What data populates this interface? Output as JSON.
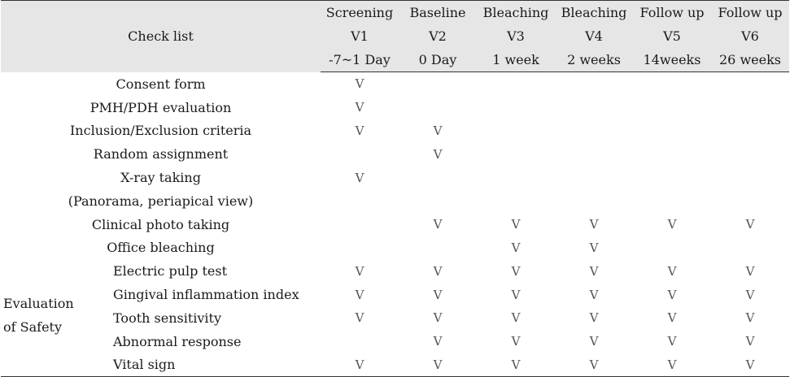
{
  "header": {
    "checklist_label": "Check list",
    "visits": [
      {
        "phase": "Screening",
        "visit": "V1",
        "timing": "-7~1 Day"
      },
      {
        "phase": "Baseline",
        "visit": "V2",
        "timing": "0 Day"
      },
      {
        "phase": "Bleaching",
        "visit": "V3",
        "timing": "1 week"
      },
      {
        "phase": "Bleaching",
        "visit": "V4",
        "timing": "2 weeks"
      },
      {
        "phase": "Follow up",
        "visit": "V5",
        "timing": "14weeks"
      },
      {
        "phase": "Follow up",
        "visit": "V6",
        "timing": "26 weeks"
      }
    ]
  },
  "check_mark": "V",
  "rows": [
    {
      "label": "Consent form",
      "checks": [
        "V",
        "",
        "",
        "",
        "",
        ""
      ]
    },
    {
      "label": "PMH/PDH evaluation",
      "checks": [
        "V",
        "",
        "",
        "",
        "",
        ""
      ]
    },
    {
      "label": "Inclusion/Exclusion criteria",
      "checks": [
        "V",
        "V",
        "",
        "",
        "",
        ""
      ]
    },
    {
      "label": "Random assignment",
      "checks": [
        "",
        "V",
        "",
        "",
        "",
        ""
      ]
    },
    {
      "label": "X-ray taking",
      "checks": [
        "V",
        "",
        "",
        "",
        "",
        ""
      ]
    },
    {
      "label": "(Panorama, periapical view)",
      "checks": [
        "",
        "",
        "",
        "",
        "",
        ""
      ]
    },
    {
      "label": "Clinical photo taking",
      "checks": [
        "",
        "V",
        "V",
        "V",
        "V",
        "V"
      ]
    },
    {
      "label": "Office bleaching",
      "checks": [
        "",
        "",
        "V",
        "V",
        "",
        ""
      ]
    }
  ],
  "safety": {
    "category_line1": "Evaluation",
    "category_line2": "of Safety",
    "items": [
      {
        "label": "Electric pulp test",
        "checks": [
          "V",
          "V",
          "V",
          "V",
          "V",
          "V"
        ]
      },
      {
        "label": "Gingival inflammation index",
        "checks": [
          "V",
          "V",
          "V",
          "V",
          "V",
          "V"
        ]
      },
      {
        "label": "Tooth sensitivity",
        "checks": [
          "V",
          "V",
          "V",
          "V",
          "V",
          "V"
        ]
      },
      {
        "label": "Abnormal response",
        "checks": [
          "",
          "V",
          "V",
          "V",
          "V",
          "V"
        ]
      },
      {
        "label": "Vital sign",
        "checks": [
          "V",
          "V",
          "V",
          "V",
          "V",
          "V"
        ]
      }
    ]
  }
}
